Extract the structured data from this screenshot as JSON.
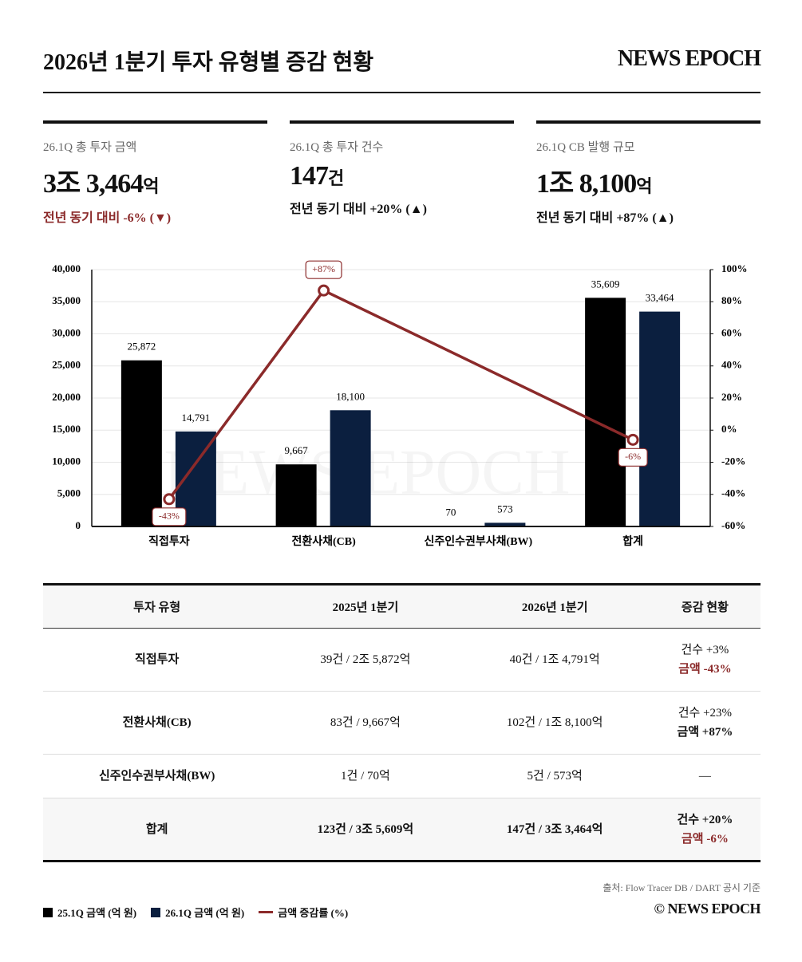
{
  "header": {
    "title": "2026년 1분기 투자 유형별 증감 현황",
    "brand": "NEWS EPOCH"
  },
  "kpis": [
    {
      "label": "26.1Q 총 투자 금액",
      "value": "3조 3,464",
      "unit": "억",
      "change": "전년 동기 대비 -6% (▼)"
    },
    {
      "label": "26.1Q 총 투자 건수",
      "value": "147",
      "unit": "건",
      "change": "전년 동기 대비 +20% (▲)"
    },
    {
      "label": "26.1Q CB 발행 규모",
      "value": "1조 8,100",
      "unit": "억",
      "change": "전년 동기 대비 +87% (▲)"
    }
  ],
  "chart_data": {
    "type": "bar",
    "categories": [
      "직접투자",
      "전환사채(CB)",
      "신주인수권부사채(BW)",
      "합계"
    ],
    "series": [
      {
        "name": "25.1Q 금액 (억 원)",
        "color": "#000000",
        "values": [
          25872,
          9667,
          70,
          35609
        ],
        "value_labels": [
          "25,872",
          "9,667",
          "70",
          "35,609"
        ]
      },
      {
        "name": "26.1Q 금액 (억 원)",
        "color": "#0b1f3f",
        "values": [
          14791,
          18100,
          573,
          33464
        ],
        "value_labels": [
          "14,791",
          "18,100",
          "573",
          "33,464"
        ]
      },
      {
        "name": "금액 증감률 (%)",
        "color": "#8b2a2a",
        "type": "line",
        "axis": "y2",
        "connect_nulls": true,
        "values": [
          -43,
          87,
          null,
          -6
        ],
        "value_labels": [
          "-43%",
          "+87%",
          null,
          "-6%"
        ]
      }
    ],
    "ylim": [
      0,
      40000
    ],
    "yticks": [
      0,
      {
        "value": 5000,
        "label": "5,000"
      },
      {
        "value": 10000,
        "label": "10,000"
      },
      {
        "value": 15000,
        "label": "15,000"
      },
      {
        "value": 20000,
        "label": "20,000"
      },
      {
        "value": 25000,
        "label": "25,000"
      },
      {
        "value": 30000,
        "label": "30,000"
      },
      {
        "value": 35000,
        "label": "35,000"
      },
      {
        "value": 40000,
        "label": "40,000"
      }
    ],
    "y2lim": [
      -60,
      100
    ],
    "y2ticks": [
      {
        "value": -60,
        "label": "-60%"
      },
      {
        "value": -40,
        "label": "-40%"
      },
      {
        "value": -20,
        "label": "-20%"
      },
      {
        "value": 0,
        "label": "0%"
      },
      {
        "value": 20,
        "label": "20%"
      },
      {
        "value": 40,
        "label": "40%"
      },
      {
        "value": 60,
        "label": "60%"
      },
      {
        "value": 80,
        "label": "80%"
      },
      {
        "value": 100,
        "label": "100%"
      }
    ],
    "grid": true,
    "legend": "bottom"
  },
  "table": {
    "columns": [
      "투자 유형",
      "2025년 1분기",
      "2026년 1분기",
      "증감 현황"
    ],
    "rows": [
      [
        "직접투자",
        "39건 / 2조 5,872억",
        "40건 / 1조 4,791억",
        {
          "count": "건수 +3%",
          "amount": "금액 -43%"
        }
      ],
      [
        "전환사채(CB)",
        "83건 / 9,667억",
        "102건 / 1조 8,100억",
        {
          "count": "건수 +23%",
          "amount": "금액 +87%"
        }
      ],
      [
        "신주인수권부사채(BW)",
        "1건 / 70억",
        "5건 / 573억",
        "—"
      ],
      [
        "합계",
        "123건 / 3조 5,609억",
        "147건 / 3조 3,464억",
        {
          "count": "건수 +20%",
          "amount": "금액 -6%"
        }
      ]
    ]
  },
  "footer": {
    "source": "출처: Flow Tracer DB / DART 공시 기준",
    "copyright": "© NEWS EPOCH"
  }
}
